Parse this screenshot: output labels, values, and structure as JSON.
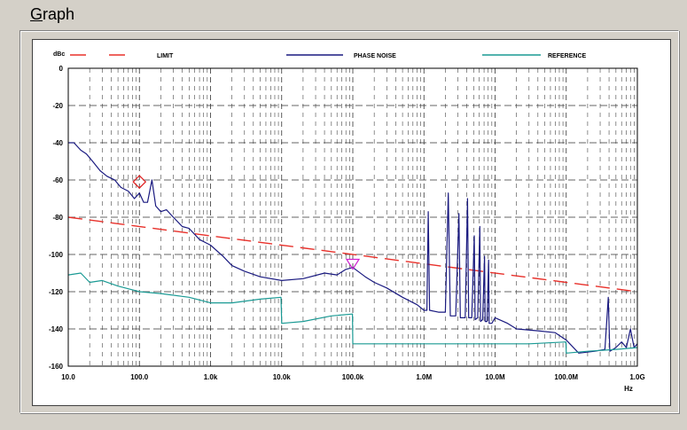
{
  "groupbox": {
    "title_accel": "G",
    "title_rest": "raph"
  },
  "chart_data": {
    "type": "line",
    "title": "",
    "xlabel": "Hz",
    "ylabel": "dBc",
    "xscale": "log",
    "xlim": [
      10,
      1000000000
    ],
    "ylim": [
      -160,
      0
    ],
    "grid": true,
    "legend_position": "top",
    "x_ticks": [
      {
        "value": 10,
        "label": "10.0"
      },
      {
        "value": 100,
        "label": "100.0"
      },
      {
        "value": 1000,
        "label": "1.0k"
      },
      {
        "value": 10000,
        "label": "10.0k"
      },
      {
        "value": 100000,
        "label": "100.0k"
      },
      {
        "value": 1000000,
        "label": "1.0M"
      },
      {
        "value": 10000000,
        "label": "10.0M"
      },
      {
        "value": 100000000,
        "label": "100.0M"
      },
      {
        "value": 1000000000,
        "label": "1.0G"
      }
    ],
    "y_ticks": [
      {
        "value": 0,
        "label": "0"
      },
      {
        "value": -20,
        "label": "-20"
      },
      {
        "value": -40,
        "label": "-40"
      },
      {
        "value": -60,
        "label": "-60"
      },
      {
        "value": -80,
        "label": "-80"
      },
      {
        "value": -100,
        "label": "-100"
      },
      {
        "value": -120,
        "label": "-120"
      },
      {
        "value": -140,
        "label": "-140"
      },
      {
        "value": -160,
        "label": "-160"
      }
    ],
    "series": [
      {
        "name": "LIMIT",
        "color": "#e8302a",
        "style": "dashed",
        "points": [
          [
            10,
            -80
          ],
          [
            1000000000,
            -120
          ]
        ]
      },
      {
        "name": "PHASE NOISE",
        "color": "#1a1a80",
        "style": "solid",
        "points": [
          [
            10,
            -40
          ],
          [
            12,
            -40
          ],
          [
            15,
            -44
          ],
          [
            18,
            -46
          ],
          [
            22,
            -50
          ],
          [
            28,
            -55
          ],
          [
            35,
            -58
          ],
          [
            45,
            -60
          ],
          [
            55,
            -64
          ],
          [
            70,
            -66
          ],
          [
            85,
            -70
          ],
          [
            100,
            -67
          ],
          [
            115,
            -72
          ],
          [
            130,
            -72
          ],
          [
            150,
            -60
          ],
          [
            170,
            -74
          ],
          [
            200,
            -77
          ],
          [
            240,
            -76
          ],
          [
            300,
            -80
          ],
          [
            400,
            -85
          ],
          [
            500,
            -86
          ],
          [
            700,
            -92
          ],
          [
            1000,
            -95
          ],
          [
            1500,
            -101
          ],
          [
            2000,
            -106
          ],
          [
            3000,
            -109
          ],
          [
            5000,
            -112
          ],
          [
            10000,
            -114
          ],
          [
            20000,
            -113
          ],
          [
            40000,
            -110
          ],
          [
            60000,
            -111
          ],
          [
            80000,
            -108
          ],
          [
            100000,
            -107
          ],
          [
            150000,
            -112
          ],
          [
            200000,
            -115
          ],
          [
            300000,
            -118
          ],
          [
            500000,
            -123
          ],
          [
            800000,
            -127
          ],
          [
            1000000,
            -130
          ],
          [
            1100000,
            -130
          ],
          [
            1150000,
            -77
          ],
          [
            1200000,
            -130
          ],
          [
            1600000,
            -131
          ],
          [
            2000000,
            -131
          ],
          [
            2200000,
            -67
          ],
          [
            2350000,
            -133
          ],
          [
            2800000,
            -133
          ],
          [
            3100000,
            -78
          ],
          [
            3250000,
            -134
          ],
          [
            3800000,
            -134
          ],
          [
            4100000,
            -70
          ],
          [
            4250000,
            -134
          ],
          [
            4700000,
            -134
          ],
          [
            5100000,
            -90
          ],
          [
            5250000,
            -135
          ],
          [
            5700000,
            -134
          ],
          [
            6100000,
            -85
          ],
          [
            6250000,
            -136
          ],
          [
            6700000,
            -135
          ],
          [
            7100000,
            -101
          ],
          [
            7250000,
            -136
          ],
          [
            7700000,
            -136
          ],
          [
            8100000,
            -103
          ],
          [
            8250000,
            -137
          ],
          [
            9000000,
            -137
          ],
          [
            10000000,
            -134
          ],
          [
            15000000,
            -137
          ],
          [
            20000000,
            -140
          ],
          [
            40000000,
            -141
          ],
          [
            70000000,
            -142
          ],
          [
            100000000,
            -146
          ],
          [
            150000000,
            -153
          ],
          [
            250000000,
            -152
          ],
          [
            350000000,
            -151
          ],
          [
            390000000,
            -123
          ],
          [
            410000000,
            -152
          ],
          [
            500000000,
            -150
          ],
          [
            600000000,
            -147
          ],
          [
            700000000,
            -150
          ],
          [
            800000000,
            -140
          ],
          [
            900000000,
            -150
          ],
          [
            1000000000,
            -148
          ]
        ]
      },
      {
        "name": "REFERENCE",
        "color": "#1a9a94",
        "style": "solid",
        "points": [
          [
            10,
            -111
          ],
          [
            15,
            -110
          ],
          [
            20,
            -115
          ],
          [
            30,
            -114
          ],
          [
            50,
            -117
          ],
          [
            80,
            -119
          ],
          [
            100,
            -120
          ],
          [
            200,
            -121
          ],
          [
            500,
            -123
          ],
          [
            1000,
            -126
          ],
          [
            2000,
            -126
          ],
          [
            5000,
            -124
          ],
          [
            9800,
            -123
          ],
          [
            10000,
            -137
          ],
          [
            20000,
            -136
          ],
          [
            50000,
            -133
          ],
          [
            99000,
            -132
          ],
          [
            100000,
            -148
          ],
          [
            300000,
            -148
          ],
          [
            1000000,
            -148
          ],
          [
            10000000,
            -148
          ],
          [
            30000000,
            -148
          ],
          [
            99000000,
            -147
          ],
          [
            100000000,
            -153
          ],
          [
            200000000,
            -152
          ],
          [
            500000000,
            -151
          ],
          [
            1000000000,
            -150
          ]
        ]
      }
    ],
    "markers": [
      {
        "shape": "diamond",
        "color": "#e02020",
        "x": 100,
        "y": -61
      },
      {
        "shape": "triangle-down",
        "color": "#d020d0",
        "x": 100000,
        "y": -105
      }
    ]
  }
}
